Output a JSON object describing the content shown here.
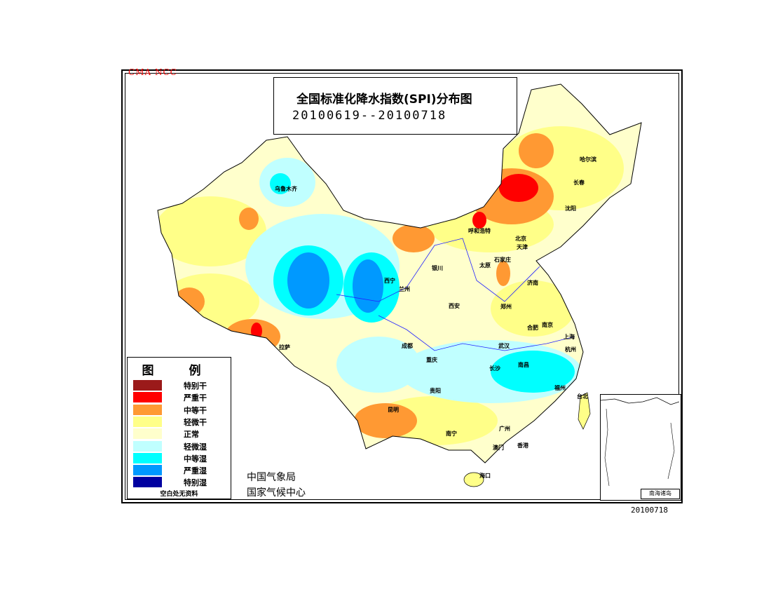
{
  "header": {
    "watermark": "CMA NCC",
    "title": "全国标准化降水指数(SPI)分布图",
    "date_range": "20100619--20100718"
  },
  "legend": {
    "title": "图 例",
    "items": [
      {
        "label": "特别干",
        "color": "#9b1a1a"
      },
      {
        "label": "严重干",
        "color": "#ff0000"
      },
      {
        "label": "中等干",
        "color": "#ff9933"
      },
      {
        "label": "轻微干",
        "color": "#ffff88"
      },
      {
        "label": "正常",
        "color": "#ffffcc"
      },
      {
        "label": "轻微湿",
        "color": "#c0ffff"
      },
      {
        "label": "中等湿",
        "color": "#00ffff"
      },
      {
        "label": "严重湿",
        "color": "#0099ff"
      },
      {
        "label": "特别湿",
        "color": "#0000a0"
      }
    ],
    "no_data_note": "空白处无资料"
  },
  "agency": {
    "line1": "中国气象局",
    "line2": "国家气候中心"
  },
  "footer_date": "20100718",
  "inset_label": "南海诸岛",
  "cities": [
    "乌鲁木齐",
    "哈尔滨",
    "长春",
    "沈阳",
    "呼和浩特",
    "北京",
    "天津",
    "石家庄",
    "太原",
    "银川",
    "西宁",
    "兰州",
    "济南",
    "郑州",
    "西安",
    "合肥",
    "南京",
    "上海",
    "杭州",
    "武汉",
    "成都",
    "重庆",
    "拉萨",
    "长沙",
    "南昌",
    "福州",
    "贵阳",
    "昆明",
    "台北",
    "南宁",
    "广州",
    "澳门",
    "香港",
    "海口"
  ]
}
